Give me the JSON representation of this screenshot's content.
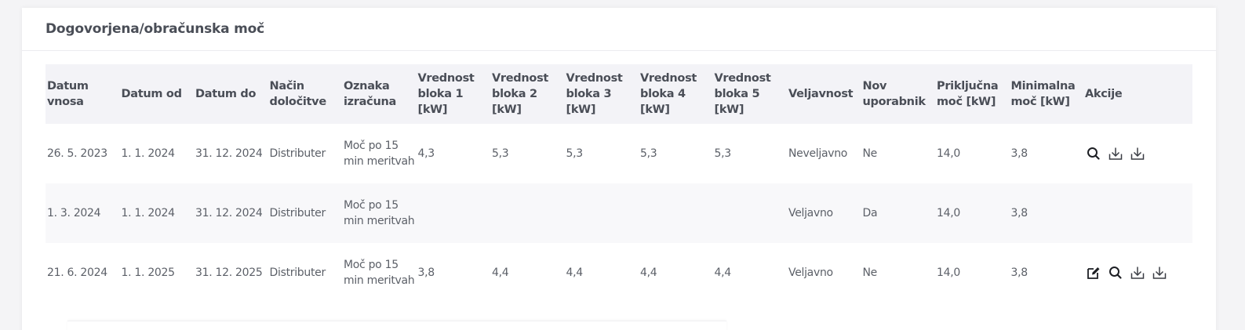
{
  "card": {
    "title": "Dogovorjena/obračunska moč"
  },
  "table": {
    "headers": [
      "Datum vnosa",
      "Datum od",
      "Datum do",
      "Način določitve",
      "Oznaka izračuna",
      "Vrednost bloka 1 [kW]",
      "Vrednost bloka 2 [kW]",
      "Vrednost bloka 3 [kW]",
      "Vrednost bloka 4 [kW]",
      "Vrednost bloka 5 [kW]",
      "Veljavnost",
      "Nov uporabnik",
      "Priključna moč [kW]",
      "Minimalna moč [kW]",
      "Akcije"
    ],
    "rows": [
      {
        "cells": [
          "26. 5. 2023",
          "1. 1. 2024",
          "31. 12. 2024",
          "Distributer",
          "Moč po 15 min meritvah",
          "4,3",
          "5,3",
          "5,3",
          "5,3",
          "5,3",
          "Neveljavno",
          "Ne",
          "14,0",
          "3,8"
        ],
        "actions": [
          "search-icon",
          "download-icon",
          "download-icon"
        ]
      },
      {
        "cells": [
          "1. 3. 2024",
          "1. 1. 2024",
          "31. 12. 2024",
          "Distributer",
          "Moč po 15 min meritvah",
          "",
          "",
          "",
          "",
          "",
          "Veljavno",
          "Da",
          "14,0",
          "3,8"
        ],
        "actions": []
      },
      {
        "cells": [
          "21. 6. 2024",
          "1. 1. 2025",
          "31. 12. 2025",
          "Distributer",
          "Moč po 15 min meritvah",
          "3,8",
          "4,4",
          "4,4",
          "4,4",
          "4,4",
          "Veljavno",
          "Ne",
          "14,0",
          "3,8"
        ],
        "actions": [
          "edit-icon",
          "search-icon",
          "download-icon",
          "download-icon"
        ]
      }
    ]
  },
  "colors": {
    "header_bg": "#f3f3f7",
    "stripe_bg": "#f8f8fa",
    "text": "#5c6068",
    "heading": "#4a4e57"
  }
}
